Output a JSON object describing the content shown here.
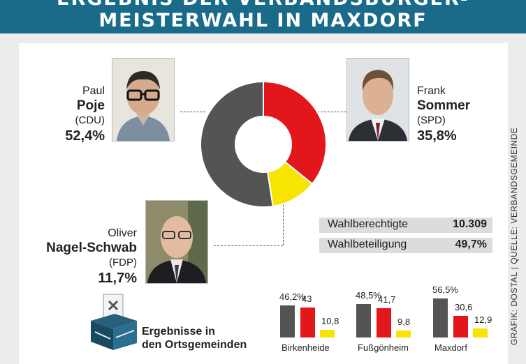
{
  "title": {
    "line1": "ERGEBNIS DER VERBANDSBÜRGER-",
    "line2": "MEISTERWAHL IN MAXDORF"
  },
  "candidates": [
    {
      "first": "Paul",
      "last": "Poje",
      "party": "(CDU)",
      "percent": "52,4%"
    },
    {
      "first": "Frank",
      "last": "Sommer",
      "party": "(SPD)",
      "percent": "35,8%"
    },
    {
      "first": "Oliver",
      "last": "Nagel-Schwab",
      "party": "(FDP)",
      "percent": "11,7%"
    }
  ],
  "stats": [
    {
      "label": "Wahlberechtigte",
      "value": "10.309"
    },
    {
      "label": "Wahlbeteiligung",
      "value": "49,7%"
    }
  ],
  "box_caption": [
    "Ergebnisse in",
    "den Ortsgemeinden"
  ],
  "credit": "GRAFIK: DOSTAL | QUELLE: VERBANDSGEMEINDE",
  "colors": {
    "cdu": "#545454",
    "spd": "#e3161b",
    "fdp": "#f7e400",
    "header": "#1a6a8a"
  },
  "chart_data": [
    {
      "type": "pie",
      "style": "donut",
      "labels": [
        "Poje (CDU)",
        "Sommer (SPD)",
        "Nagel-Schwab (FDP)"
      ],
      "values": [
        52.4,
        35.8,
        11.7
      ]
    },
    {
      "type": "bar",
      "categories": [
        "Birkenheide",
        "Fußgönheim",
        "Maxdorf"
      ],
      "series": [
        {
          "values": [
            46.2,
            48.5,
            56.5
          ],
          "labels": [
            "46,2%",
            "48,5%",
            "56,5%"
          ]
        },
        {
          "values": [
            43,
            41.7,
            30.6
          ],
          "labels": [
            "43",
            "41,7",
            "30,6"
          ]
        },
        {
          "values": [
            10.8,
            9.8,
            12.9
          ],
          "labels": [
            "10,8",
            "9,8",
            "12,9"
          ]
        }
      ]
    }
  ]
}
